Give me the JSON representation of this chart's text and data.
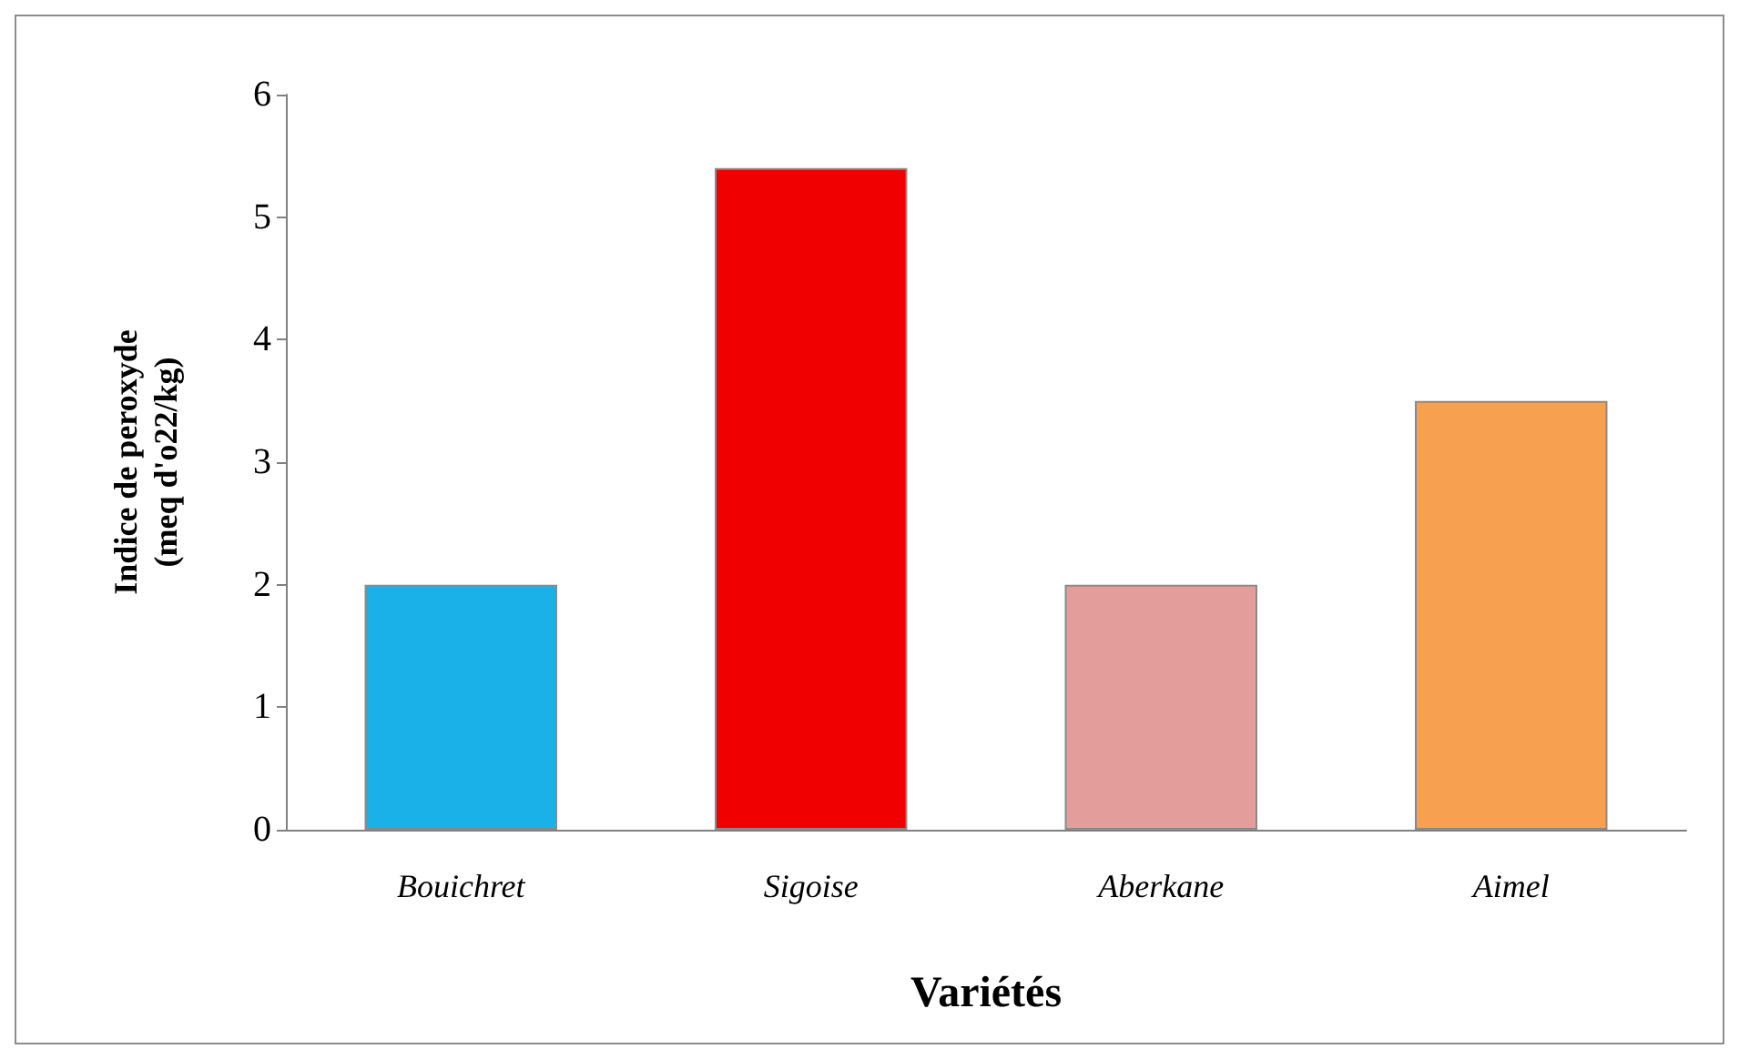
{
  "chart_data": {
    "type": "bar",
    "xlabel": "Variétés",
    "ylabel": "Indice de peroxyde\n(meq d'o22/kg)",
    "categories": [
      "Bouichret",
      "Sigoise",
      "Aberkane",
      "Aimel"
    ],
    "values": [
      2.0,
      5.4,
      2.0,
      3.5
    ],
    "colors": [
      "#1ab0e8",
      "#f00000",
      "#e39e9c",
      "#f7a050"
    ],
    "ylim": [
      0,
      6
    ],
    "yticks": [
      0,
      1,
      2,
      3,
      4,
      5,
      6
    ],
    "grid": false
  }
}
